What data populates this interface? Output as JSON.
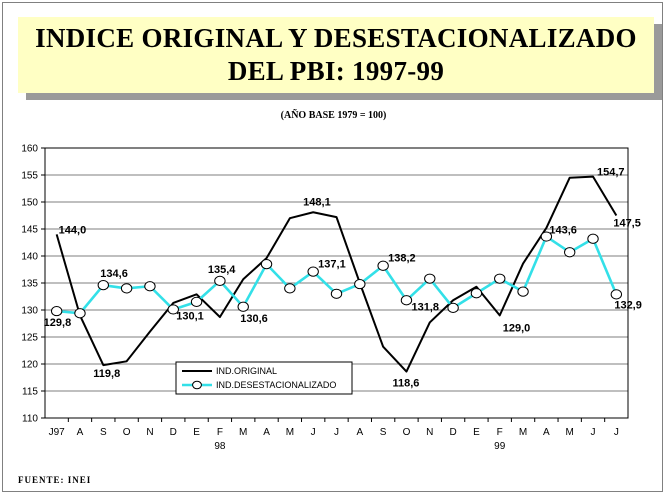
{
  "title_line1": "INDICE ORIGINAL Y DESESTACIONALIZADO",
  "title_line2": "DEL PBI: 1997-99",
  "subtitle": "(AÑO BASE 1979 = 100)",
  "source": "FUENTE: INEI",
  "chart_data": {
    "type": "line",
    "title": "INDICE ORIGINAL Y DESESTACIONALIZADO DEL PBI: 1997-99",
    "subtitle": "(AÑO BASE 1979 = 100)",
    "categories": [
      "J97",
      "A",
      "S",
      "O",
      "N",
      "D",
      "E",
      "F",
      "M",
      "A",
      "M",
      "J",
      "J",
      "A",
      "S",
      "O",
      "N",
      "D",
      "E",
      "F",
      "M",
      "A",
      "M",
      "J",
      "J"
    ],
    "year_labels": [
      {
        "index": 7,
        "label": "98"
      },
      {
        "index": 19,
        "label": "99"
      }
    ],
    "ylim": [
      110,
      160
    ],
    "yticks": [
      110,
      115,
      120,
      125,
      130,
      135,
      140,
      145,
      150,
      155,
      160
    ],
    "grid": true,
    "legend_position": "bottom-left",
    "series": [
      {
        "name": "IND.ORIGINAL",
        "color": "#000000",
        "marker": "none",
        "values": [
          144.0,
          129.0,
          119.8,
          120.5,
          126.0,
          131.3,
          132.9,
          128.7,
          135.7,
          139.6,
          147.0,
          148.1,
          147.2,
          135.0,
          123.2,
          118.6,
          127.7,
          131.8,
          134.3,
          129.0,
          138.6,
          145.2,
          154.5,
          154.7,
          147.5
        ]
      },
      {
        "name": "IND.DESESTACIONALIZADO",
        "color": "#33e0e8",
        "marker": "circle",
        "values": [
          129.8,
          129.4,
          134.6,
          134.0,
          134.4,
          130.1,
          131.5,
          135.4,
          130.6,
          138.5,
          134.0,
          137.1,
          133.0,
          134.8,
          138.2,
          131.8,
          135.8,
          130.4,
          133.1,
          135.8,
          133.4,
          143.6,
          140.7,
          143.2,
          132.9
        ]
      }
    ],
    "data_labels": [
      {
        "series": 0,
        "index": 0,
        "text": "144,0"
      },
      {
        "series": 0,
        "index": 2,
        "text": "119,8"
      },
      {
        "series": 0,
        "index": 11,
        "text": "148,1"
      },
      {
        "series": 0,
        "index": 15,
        "text": "118,6"
      },
      {
        "series": 0,
        "index": 19,
        "text": "129,0"
      },
      {
        "series": 0,
        "index": 23,
        "text": "154,7"
      },
      {
        "series": 0,
        "index": 24,
        "text": "147,5"
      },
      {
        "series": 1,
        "index": 0,
        "text": "129,8"
      },
      {
        "series": 1,
        "index": 2,
        "text": "134,6"
      },
      {
        "series": 1,
        "index": 5,
        "text": "130,1"
      },
      {
        "series": 1,
        "index": 7,
        "text": "135,4"
      },
      {
        "series": 1,
        "index": 8,
        "text": "130,6"
      },
      {
        "series": 1,
        "index": 11,
        "text": "137,1"
      },
      {
        "series": 1,
        "index": 14,
        "text": "138,2"
      },
      {
        "series": 1,
        "index": 15,
        "text": "131,8"
      },
      {
        "series": 1,
        "index": 21,
        "text": "143,6"
      },
      {
        "series": 1,
        "index": 24,
        "text": "132,9"
      }
    ]
  }
}
